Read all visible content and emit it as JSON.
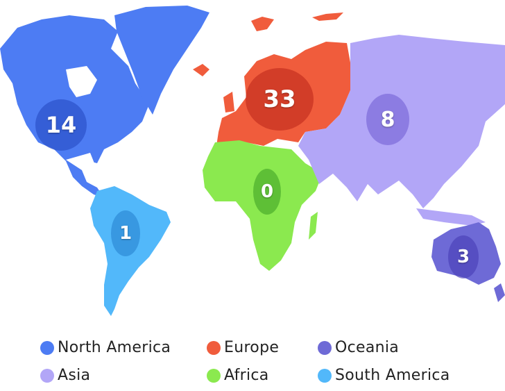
{
  "regions": [
    {
      "key": "north_america",
      "name": "North America",
      "value": "14",
      "color": "#4D7CF3"
    },
    {
      "key": "europe",
      "name": "Europe",
      "value": "33",
      "color": "#F05C3C"
    },
    {
      "key": "oceania",
      "name": "Oceania",
      "value": "3",
      "color": "#6E6AD6"
    },
    {
      "key": "asia",
      "name": "Asia",
      "value": "8",
      "color": "#B2A6F7"
    },
    {
      "key": "africa",
      "name": "Africa",
      "value": "0",
      "color": "#8BE94F"
    },
    {
      "key": "south_america",
      "name": "South America",
      "value": "1",
      "color": "#52B8FA"
    }
  ]
}
